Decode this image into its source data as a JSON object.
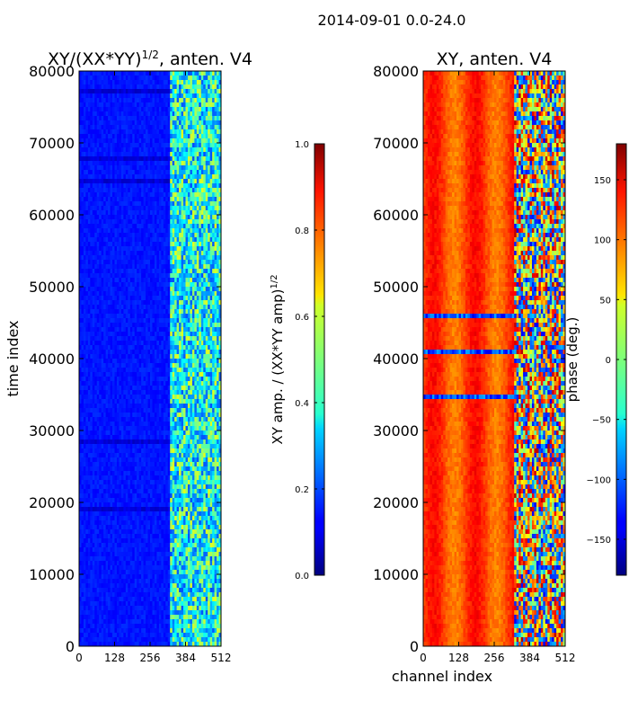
{
  "suptitle": "2014-09-01 0.0-24.0",
  "chart_data": [
    {
      "type": "heatmap",
      "title_html": "XY/(XX*YY)<tspan font-size='12' dy='-7'>1/2</tspan><tspan dy='7'>, anten. V4</tspan>",
      "title": "XY/(XX*YY)^(1/2), anten. V4",
      "xlabel": "",
      "ylabel": "time index",
      "xticks": [
        0,
        128,
        256,
        384,
        512
      ],
      "xtick_labels": [
        "0",
        "128",
        "256",
        "384",
        "512"
      ],
      "xlim": [
        0,
        512
      ],
      "yticks": [
        0,
        10000,
        20000,
        30000,
        40000,
        50000,
        60000,
        70000,
        80000
      ],
      "ytick_labels": [
        "0",
        "10000",
        "20000",
        "30000",
        "40000",
        "50000",
        "60000",
        "70000",
        "80000"
      ],
      "ylim": [
        0,
        80000
      ],
      "colormap": "jet",
      "colorbar": {
        "label": "XY amp. / (XX*YY amp)^(1/2)",
        "label_html": "XY amp. / (XX*YY amp)<tspan font-size='10' dy='-6'>1/2</tspan>",
        "range": [
          0.0,
          1.0
        ],
        "ticks": [
          0.0,
          0.2,
          0.4,
          0.6,
          0.8,
          1.0
        ],
        "tick_labels": [
          "0.0",
          "0.2",
          "0.4",
          "0.6",
          "0.8",
          "1.0"
        ]
      }
    },
    {
      "type": "heatmap",
      "title_html": "XY, anten. V4",
      "title": "XY, anten. V4",
      "xlabel": "channel index",
      "ylabel": "",
      "xticks": [
        0,
        128,
        256,
        384,
        512
      ],
      "xtick_labels": [
        "0",
        "128",
        "256",
        "384",
        "512"
      ],
      "xlim": [
        0,
        512
      ],
      "yticks": [
        0,
        10000,
        20000,
        30000,
        40000,
        50000,
        60000,
        70000,
        80000
      ],
      "ytick_labels": [
        "0",
        "10000",
        "20000",
        "30000",
        "40000",
        "50000",
        "60000",
        "70000",
        "80000"
      ],
      "ylim": [
        0,
        80000
      ],
      "colormap": "jet",
      "colorbar": {
        "label": "phase (deg.)",
        "range": [
          -180,
          180
        ],
        "ticks": [
          -150,
          -100,
          -50,
          0,
          50,
          100,
          150
        ],
        "tick_labels": [
          "−150",
          "−100",
          "−50",
          "0",
          "50",
          "100",
          "150"
        ]
      }
    }
  ]
}
